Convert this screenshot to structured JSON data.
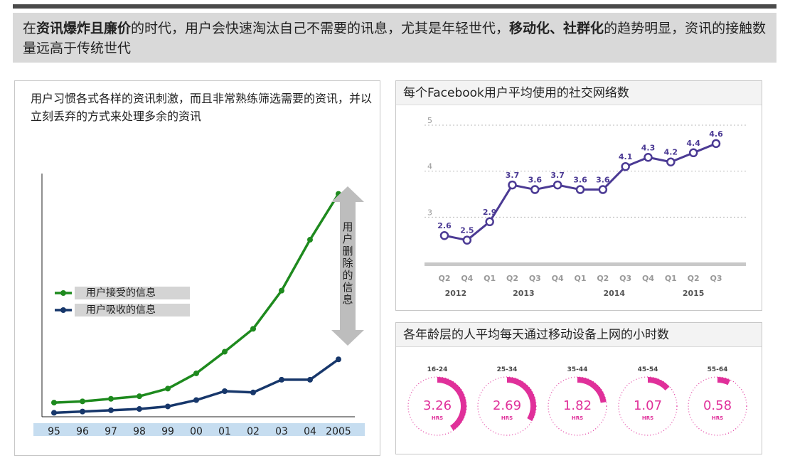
{
  "headline": {
    "p1": "在",
    "b1": "资讯爆炸且廉价",
    "p2": "的时代，用户会快速淘汰自己不需要的讯息，尤其是年轻世代，",
    "b2": "移动化、社群化",
    "p3": "的趋势明显，资讯的接触数量远高于传统世代"
  },
  "left_panel": {
    "description": "用户习惯各式各样的资讯刺激，而且非常熟练筛选需要的资讯，并以立刻丢弃的方式来处理多余的资讯",
    "arrow_label": "用户删除的信息"
  },
  "right_top": {
    "title": "每个Facebook用户平均使用的社交网络数"
  },
  "right_bottom": {
    "title": "各年龄层的人平均每天通过移动设备上网的小时数"
  },
  "colors": {
    "green": "#1e8a1e",
    "navy": "#17376b",
    "purple": "#4b3a94",
    "magenta": "#e0309a",
    "axis_band": "#c6ddf0"
  },
  "chart_data": [
    {
      "type": "line",
      "title": "",
      "categories": [
        "95",
        "96",
        "97",
        "98",
        "99",
        "00",
        "01",
        "02",
        "03",
        "04",
        "2005"
      ],
      "series": [
        {
          "name": "用户接受的信息",
          "values": [
            5,
            5.5,
            6.5,
            7.5,
            10.5,
            16.5,
            25,
            34,
            49,
            69,
            87
          ]
        },
        {
          "name": "用户吸收的信息",
          "values": [
            1,
            1.5,
            2,
            2.5,
            3.5,
            6,
            9.5,
            9,
            14,
            14,
            22
          ]
        }
      ],
      "ylim": [
        0,
        95
      ],
      "legend": "left"
    },
    {
      "type": "line",
      "title": "每个Facebook用户平均使用的社交网络数",
      "categories": [
        "Q2",
        "Q4",
        "Q1",
        "Q2",
        "Q3",
        "Q4",
        "Q1",
        "Q2",
        "Q3",
        "Q4",
        "Q1",
        "Q2",
        "Q3"
      ],
      "year_groups": [
        {
          "label": "2012",
          "start": 0,
          "end": 1
        },
        {
          "label": "2013",
          "start": 2,
          "end": 5
        },
        {
          "label": "2014",
          "start": 6,
          "end": 9
        },
        {
          "label": "2015",
          "start": 10,
          "end": 12
        }
      ],
      "values": [
        2.6,
        2.5,
        2.9,
        3.7,
        3.6,
        3.7,
        3.6,
        3.6,
        4.1,
        4.3,
        4.2,
        4.4,
        4.6
      ],
      "value_labels": [
        "2.6",
        "2.5",
        "2.9",
        "3.7",
        "3.6",
        "3.7",
        "3.6",
        "3.6",
        "4.1",
        "4.3",
        "4.2",
        "4.4",
        "4.6"
      ],
      "yticks": [
        "3",
        "4",
        "5"
      ],
      "ylim": [
        2.0,
        5.0
      ],
      "grid": true
    },
    {
      "type": "pie",
      "title": "各年龄层的人平均每天通过移动设备上网的小时数",
      "categories": [
        "16-24",
        "25-34",
        "35-44",
        "45-54",
        "55-64"
      ],
      "values": [
        3.26,
        2.69,
        1.82,
        1.07,
        0.58
      ],
      "value_labels": [
        "3.26",
        "2.69",
        "1.82",
        "1.07",
        "0.58"
      ],
      "unit": "HRS",
      "max": 8
    }
  ]
}
